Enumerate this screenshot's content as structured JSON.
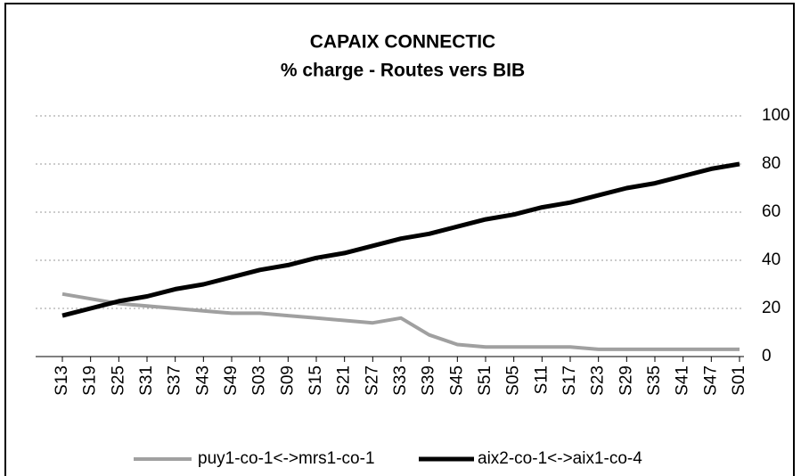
{
  "chart_data": {
    "type": "line",
    "title": "CAPAIX CONNECTIC",
    "subtitle": "% charge - Routes vers BIB",
    "categories": [
      "S13",
      "S19",
      "S25",
      "S31",
      "S37",
      "S43",
      "S49",
      "S03",
      "S09",
      "S15",
      "S21",
      "S27",
      "S33",
      "S39",
      "S45",
      "S51",
      "S05",
      "S11",
      "S17",
      "S23",
      "S29",
      "S35",
      "S41",
      "S47",
      "S01"
    ],
    "series": [
      {
        "name": "puy1-co-1<->mrs1-co-1",
        "color": "#a0a0a0",
        "values": [
          26,
          24,
          22,
          21,
          20,
          19,
          18,
          18,
          17,
          16,
          15,
          14,
          16,
          9,
          5,
          4,
          4,
          4,
          4,
          3,
          3,
          3,
          3,
          3,
          3
        ]
      },
      {
        "name": "aix2-co-1<->aix1-co-4",
        "color": "#000000",
        "values": [
          17,
          20,
          23,
          25,
          28,
          30,
          33,
          36,
          38,
          41,
          43,
          46,
          49,
          51,
          54,
          57,
          59,
          62,
          64,
          67,
          70,
          72,
          75,
          78,
          80
        ]
      }
    ],
    "ylim": [
      0,
      100
    ],
    "yticks": [
      0,
      20,
      40,
      60,
      80,
      100
    ],
    "grid": true
  }
}
